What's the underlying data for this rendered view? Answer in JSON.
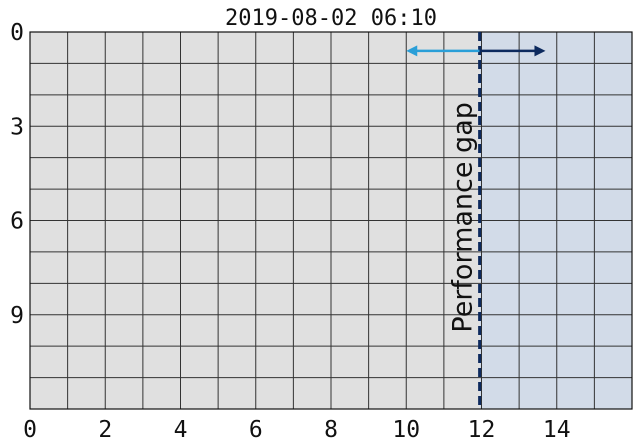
{
  "chart_data": {
    "type": "area",
    "title": "2019-08-02 06:10",
    "xlabel": "",
    "ylabel": "",
    "xlim": [
      0,
      16
    ],
    "ylim": [
      12,
      0
    ],
    "x_ticks": [
      0,
      2,
      4,
      6,
      8,
      10,
      12,
      14
    ],
    "x_tick_labels": [
      "0",
      "2",
      "4",
      "6",
      "8",
      "10",
      "12",
      "14"
    ],
    "y_ticks": [
      0,
      3,
      6,
      9
    ],
    "y_tick_labels": [
      "0",
      "3",
      "6",
      "9"
    ],
    "grid": true,
    "grid_x_step": 1,
    "grid_y_step": 1,
    "regions": [
      {
        "x0": 0,
        "x1": 11.95,
        "color": "#e0e0e0"
      },
      {
        "x0": 11.95,
        "x1": 16,
        "color": "#d2dbe8"
      }
    ],
    "vline": {
      "x": 11.95,
      "color": "#0d2a5e",
      "style": "dashed"
    },
    "arrows": [
      {
        "from_x": 11.95,
        "to_x": 10,
        "y": 0.6,
        "color": "#2a9fd8"
      },
      {
        "from_x": 11.95,
        "to_x": 13.7,
        "y": 0.6,
        "color": "#0d2a5e"
      }
    ],
    "annotation": {
      "text": "Performance gap",
      "x": 11.95,
      "y": 5.9,
      "rotation": -90
    },
    "colors": {
      "grid": "#333333",
      "axis": "#111111"
    }
  }
}
